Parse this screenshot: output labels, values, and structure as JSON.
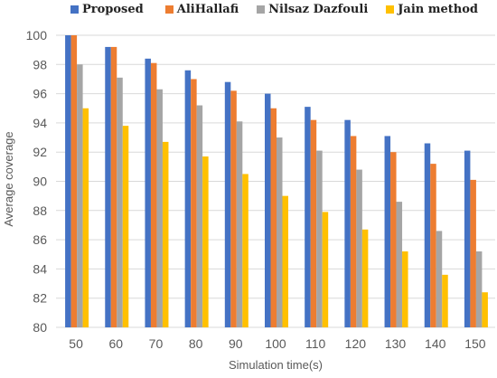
{
  "chart_data": {
    "type": "bar",
    "xlabel": "Simulation time(s)",
    "ylabel": "Average coverage",
    "categories": [
      "50",
      "60",
      "70",
      "80",
      "90",
      "100",
      "110",
      "120",
      "130",
      "140",
      "150"
    ],
    "ylim": [
      80,
      100
    ],
    "yticks": [
      "80",
      "82",
      "84",
      "86",
      "88",
      "90",
      "92",
      "94",
      "96",
      "98",
      "100"
    ],
    "grid": "horizontal",
    "legend_position": "top",
    "series": [
      {
        "name": "Proposed",
        "color": "#4472C4",
        "values": [
          100,
          99.2,
          98.4,
          97.6,
          96.8,
          96.0,
          95.1,
          94.2,
          93.1,
          92.6,
          92.1
        ]
      },
      {
        "name": "AliHallafi",
        "color": "#ED7D31",
        "values": [
          100,
          99.2,
          98.1,
          97.0,
          96.2,
          95.0,
          94.2,
          93.1,
          92.0,
          91.2,
          90.1
        ]
      },
      {
        "name": "Nilsaz Dazfouli",
        "color": "#A5A5A5",
        "values": [
          98.0,
          97.1,
          96.3,
          95.2,
          94.1,
          93.0,
          92.1,
          90.8,
          88.6,
          86.6,
          85.2
        ]
      },
      {
        "name": "Jain method",
        "color": "#FFC000",
        "values": [
          95.0,
          93.8,
          92.7,
          91.7,
          90.5,
          89.0,
          87.9,
          86.7,
          85.2,
          83.6,
          82.4
        ]
      }
    ]
  }
}
